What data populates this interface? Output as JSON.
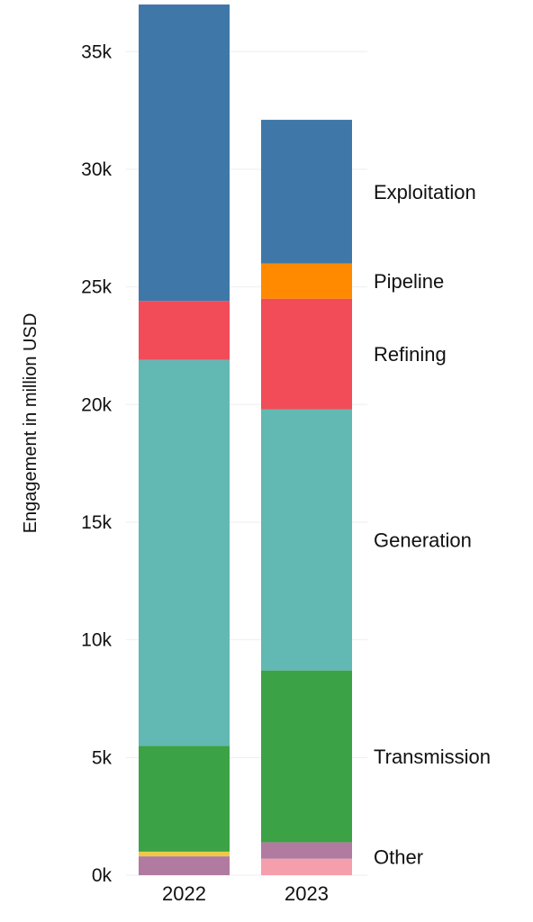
{
  "chart_data": {
    "type": "bar",
    "stacked": true,
    "categories": [
      "2022",
      "2023"
    ],
    "ylabel": "Engagement in million USD",
    "ylim": [
      0,
      37000
    ],
    "yticks": [
      0,
      5000,
      10000,
      15000,
      20000,
      25000,
      30000,
      35000
    ],
    "ytick_labels": [
      "0k",
      "5k",
      "10k",
      "15k",
      "20k",
      "25k",
      "30k",
      "35k"
    ],
    "grid": "horizontal",
    "series": [
      {
        "name": "Other",
        "values": [
          0,
          700
        ],
        "color": "#f59fad"
      },
      {
        "name": "",
        "values": [
          800,
          700
        ],
        "color": "#b07aa1"
      },
      {
        "name": "",
        "values": [
          200,
          0
        ],
        "color": "#edc948"
      },
      {
        "name": "Transmission",
        "values": [
          4500,
          7300
        ],
        "color": "#3ca246"
      },
      {
        "name": "Generation",
        "values": [
          16400,
          11100
        ],
        "color": "#62b8b3"
      },
      {
        "name": "Refining",
        "values": [
          2500,
          4700
        ],
        "color": "#f14c58"
      },
      {
        "name": "Pipeline",
        "values": [
          0,
          1500
        ],
        "color": "#ff8a00"
      },
      {
        "name": "Exploitation",
        "values": [
          12600,
          6100
        ],
        "color": "#3f78a8"
      }
    ],
    "legend": "inline-right"
  }
}
